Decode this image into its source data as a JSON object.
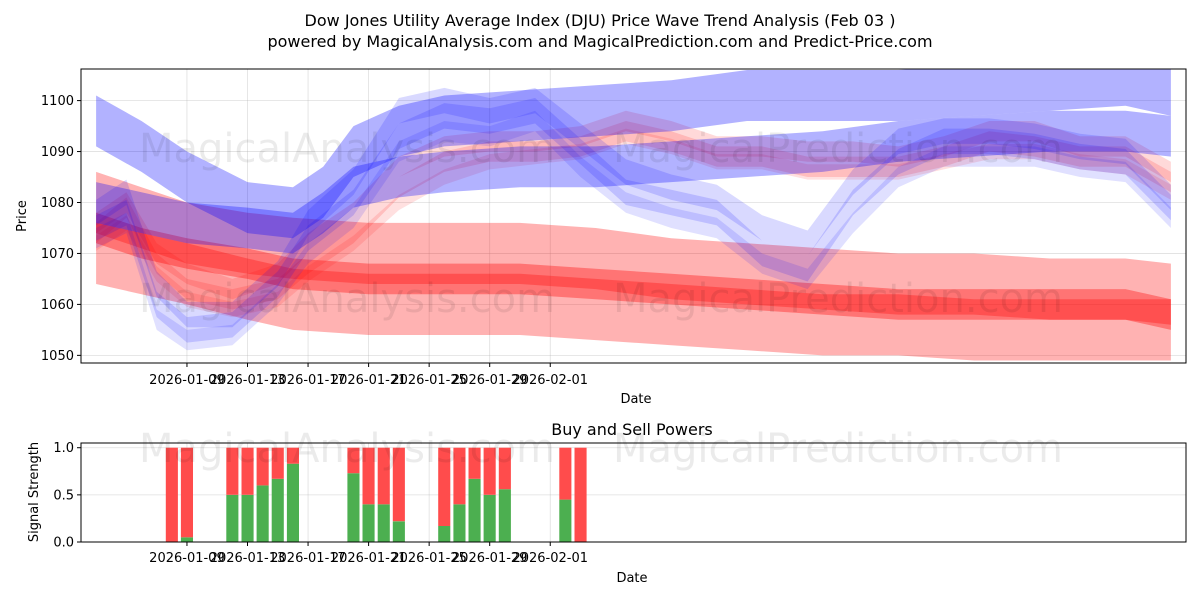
{
  "title_line1": "Dow Jones Utility Average Index (DJU) Price Wave Trend Analysis (Feb 03 )",
  "title_line2": "powered by MagicalAnalysis.com and MagicalPrediction.com and Predict-Price.com",
  "watermarks": [
    "MagicalAnalysis.com",
    "MagicalPrediction.com"
  ],
  "colors": {
    "red": "#ff0000",
    "blue": "#0000ff",
    "buy": "#4caf50",
    "sell": "#ff4c4c"
  },
  "chart_data": [
    {
      "type": "area",
      "title": "",
      "xlabel": "Date",
      "ylabel": "Price",
      "x_range": [
        -4.0,
        69.0
      ],
      "ylim": [
        1048.5,
        1106.2
      ],
      "yticks": [
        1050,
        1060,
        1070,
        1080,
        1090,
        1100
      ],
      "xticks": [
        {
          "day": 3,
          "label": "2026-01-09"
        },
        {
          "day": 7,
          "label": "2026-01-13"
        },
        {
          "day": 11,
          "label": "2026-01-17"
        },
        {
          "day": 15,
          "label": "2026-01-21"
        },
        {
          "day": 19,
          "label": "2026-01-25"
        },
        {
          "day": 23,
          "label": "2026-01-29"
        },
        {
          "day": 27,
          "label": "2026-02-01"
        }
      ],
      "grid": true,
      "bands": [
        {
          "name": "red-wide-upper",
          "color": "red",
          "opacity": 0.3,
          "width": 12,
          "x": [
            -3,
            0,
            3,
            7,
            10,
            15,
            20,
            25,
            30,
            35,
            40,
            45,
            50,
            55,
            60,
            65,
            68
          ],
          "y": [
            1080,
            1077,
            1074,
            1072,
            1071,
            1070,
            1070,
            1070,
            1069,
            1067,
            1066,
            1065,
            1064,
            1064,
            1063,
            1063,
            1062
          ]
        },
        {
          "name": "red-wide-lower",
          "color": "red",
          "opacity": 0.3,
          "width": 12,
          "x": [
            -3,
            0,
            3,
            7,
            10,
            15,
            20,
            25,
            30,
            35,
            40,
            45,
            50,
            55,
            60,
            65,
            68
          ],
          "y": [
            1070,
            1068,
            1066,
            1063,
            1061,
            1060,
            1060,
            1060,
            1059,
            1058,
            1057,
            1056,
            1056,
            1055,
            1055,
            1055,
            1055
          ]
        },
        {
          "name": "red-core",
          "color": "red",
          "opacity": 0.35,
          "width": 6,
          "x": [
            -3,
            0,
            3,
            7,
            10,
            15,
            20,
            25,
            30,
            35,
            40,
            45,
            50,
            55,
            60,
            65,
            68
          ],
          "y": [
            1075,
            1072,
            1070,
            1068,
            1066,
            1065,
            1065,
            1065,
            1064,
            1063,
            1062,
            1061,
            1060,
            1060,
            1060,
            1060,
            1058
          ]
        },
        {
          "name": "red-wave-1",
          "color": "red",
          "opacity": 0.15,
          "width": 4,
          "x": [
            -3,
            -1,
            1,
            3,
            6,
            9,
            11,
            14,
            17,
            20,
            23,
            26,
            29,
            32,
            35,
            38,
            41,
            44,
            47,
            50,
            53,
            56,
            59,
            62,
            65,
            68
          ],
          "y": [
            1076,
            1080,
            1070,
            1066,
            1063,
            1066,
            1072,
            1078,
            1087,
            1091,
            1092,
            1092,
            1093,
            1096,
            1094,
            1091,
            1091,
            1090,
            1090,
            1089,
            1091,
            1094,
            1094,
            1091,
            1091,
            1086
          ]
        },
        {
          "name": "red-wave-2",
          "color": "red",
          "opacity": 0.15,
          "width": 4,
          "x": [
            -3,
            -1,
            1,
            3,
            6,
            9,
            11,
            14,
            17,
            20,
            23,
            26,
            29,
            32,
            35,
            38,
            41,
            44,
            47,
            50,
            53,
            56,
            59,
            62,
            65,
            68
          ],
          "y": [
            1074,
            1079,
            1068,
            1063,
            1061,
            1063,
            1068,
            1074,
            1083,
            1088,
            1090,
            1090,
            1091,
            1094,
            1092,
            1089,
            1089,
            1087,
            1087,
            1087,
            1089,
            1092,
            1091,
            1089,
            1089,
            1084
          ]
        },
        {
          "name": "red-wave-3",
          "color": "red",
          "opacity": 0.12,
          "width": 3,
          "x": [
            -3,
            -1,
            1,
            3,
            6,
            9,
            11,
            14,
            17,
            20,
            23,
            26,
            29,
            32,
            35,
            38,
            41,
            44,
            47,
            50,
            53,
            56,
            59,
            62,
            65,
            68
          ],
          "y": [
            1072,
            1076,
            1066,
            1061,
            1059,
            1061,
            1066,
            1072,
            1080,
            1085,
            1088,
            1089,
            1090,
            1093,
            1091,
            1088,
            1088,
            1086,
            1086,
            1086,
            1088,
            1090,
            1090,
            1088,
            1087,
            1082
          ]
        },
        {
          "name": "blue-upper-big",
          "color": "blue",
          "opacity": 0.3,
          "width": 10,
          "x": [
            -3,
            0,
            3,
            7,
            10,
            12,
            14,
            17,
            20,
            25,
            30,
            35,
            40,
            45,
            50,
            55,
            60,
            65,
            68
          ],
          "y": [
            1096,
            1091,
            1085,
            1079,
            1078,
            1082,
            1090,
            1094,
            1096,
            1097,
            1098,
            1099,
            1101,
            1101,
            1101,
            1102,
            1103,
            1104,
            1102
          ]
        },
        {
          "name": "blue-lower-big",
          "color": "blue",
          "opacity": 0.3,
          "width": 8,
          "x": [
            -3,
            0,
            3,
            7,
            10,
            12,
            14,
            17,
            20,
            25,
            30,
            35,
            40,
            45,
            50,
            55,
            60,
            65,
            68
          ],
          "y": [
            1080,
            1078,
            1076,
            1075,
            1074,
            1078,
            1083,
            1085,
            1086,
            1087,
            1087,
            1088,
            1089,
            1090,
            1092,
            1093,
            1094,
            1094,
            1093
          ]
        },
        {
          "name": "blue-wave-1",
          "color": "blue",
          "opacity": 0.15,
          "width": 5,
          "x": [
            -3,
            -1,
            1,
            3,
            6,
            9,
            11,
            14,
            17,
            20,
            23,
            26,
            29,
            32,
            35,
            38,
            41,
            44,
            47,
            50,
            53,
            56,
            59,
            62,
            65,
            68
          ],
          "y": [
            1078,
            1082,
            1064,
            1058,
            1058,
            1066,
            1076,
            1084,
            1098,
            1100,
            1098,
            1100,
            1093,
            1086,
            1083,
            1081,
            1075,
            1072,
            1084,
            1092,
            1094,
            1094,
            1093,
            1091,
            1090,
            1081
          ]
        },
        {
          "name": "blue-wave-2",
          "color": "blue",
          "opacity": 0.15,
          "width": 5,
          "x": [
            -3,
            -1,
            1,
            3,
            6,
            9,
            11,
            14,
            17,
            20,
            23,
            26,
            29,
            32,
            35,
            38,
            41,
            44,
            47,
            50,
            53,
            56,
            59,
            62,
            65,
            68
          ],
          "y": [
            1075,
            1078,
            1060,
            1055,
            1056,
            1064,
            1073,
            1080,
            1093,
            1097,
            1096,
            1098,
            1090,
            1082,
            1080,
            1078,
            1070,
            1067,
            1080,
            1088,
            1092,
            1092,
            1091,
            1089,
            1088,
            1079
          ]
        },
        {
          "name": "blue-wave-3",
          "color": "blue",
          "opacity": 0.12,
          "width": 4,
          "x": [
            -3,
            -1,
            1,
            3,
            6,
            9,
            11,
            14,
            17,
            20,
            23,
            26,
            29,
            32,
            35,
            38,
            41,
            44,
            47,
            50,
            53,
            56,
            59,
            62,
            65,
            68
          ],
          "y": [
            1073,
            1076,
            1057,
            1053,
            1054,
            1062,
            1070,
            1077,
            1090,
            1094,
            1093,
            1096,
            1087,
            1080,
            1077,
            1075,
            1068,
            1065,
            1076,
            1085,
            1089,
            1089,
            1089,
            1087,
            1086,
            1077
          ]
        }
      ]
    },
    {
      "type": "bar",
      "title": "Buy and Sell Powers",
      "xlabel": "Date",
      "ylabel": "Signal Strength",
      "x_range": [
        -4.0,
        69.0
      ],
      "ylim": [
        0,
        1.05
      ],
      "yticks": [
        0.0,
        0.5,
        1.0
      ],
      "ytick_labels": [
        "0.0",
        "0.5",
        "1.0"
      ],
      "xticks": [
        {
          "day": 3,
          "label": "2026-01-09"
        },
        {
          "day": 7,
          "label": "2026-01-13"
        },
        {
          "day": 11,
          "label": "2026-01-17"
        },
        {
          "day": 15,
          "label": "2026-01-21"
        },
        {
          "day": 19,
          "label": "2026-01-25"
        },
        {
          "day": 23,
          "label": "2026-01-29"
        },
        {
          "day": 27,
          "label": "2026-02-01"
        }
      ],
      "grid": true,
      "series": [
        {
          "name": "Buy",
          "color": "buy"
        },
        {
          "name": "Sell",
          "color": "sell"
        }
      ],
      "bars": [
        {
          "day": 2,
          "buy": 0.0,
          "sell": 1.0
        },
        {
          "day": 3,
          "buy": 0.05,
          "sell": 0.95
        },
        {
          "day": 6,
          "buy": 0.5,
          "sell": 0.5
        },
        {
          "day": 7,
          "buy": 0.5,
          "sell": 0.5
        },
        {
          "day": 8,
          "buy": 0.6,
          "sell": 0.4
        },
        {
          "day": 9,
          "buy": 0.67,
          "sell": 0.33
        },
        {
          "day": 10,
          "buy": 0.83,
          "sell": 0.17
        },
        {
          "day": 14,
          "buy": 0.73,
          "sell": 0.27
        },
        {
          "day": 15,
          "buy": 0.4,
          "sell": 0.6
        },
        {
          "day": 16,
          "buy": 0.4,
          "sell": 0.6
        },
        {
          "day": 17,
          "buy": 0.22,
          "sell": 0.78
        },
        {
          "day": 20,
          "buy": 0.17,
          "sell": 0.83
        },
        {
          "day": 21,
          "buy": 0.4,
          "sell": 0.6
        },
        {
          "day": 22,
          "buy": 0.67,
          "sell": 0.33
        },
        {
          "day": 23,
          "buy": 0.5,
          "sell": 0.5
        },
        {
          "day": 24,
          "buy": 0.56,
          "sell": 0.44
        },
        {
          "day": 28,
          "buy": 0.45,
          "sell": 0.55
        },
        {
          "day": 29,
          "buy": 0.0,
          "sell": 1.0
        }
      ]
    }
  ]
}
